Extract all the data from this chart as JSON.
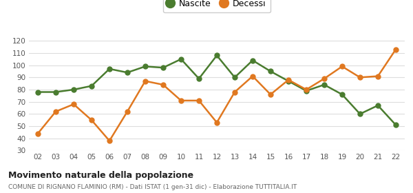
{
  "years": [
    "02",
    "03",
    "04",
    "05",
    "06",
    "07",
    "08",
    "09",
    "10",
    "11",
    "12",
    "13",
    "14",
    "15",
    "16",
    "17",
    "18",
    "19",
    "20",
    "21",
    "22"
  ],
  "nascite": [
    78,
    78,
    80,
    83,
    97,
    94,
    99,
    98,
    105,
    89,
    108,
    90,
    104,
    95,
    87,
    79,
    84,
    76,
    60,
    67,
    51
  ],
  "decessi": [
    44,
    62,
    68,
    55,
    38,
    62,
    87,
    84,
    71,
    71,
    53,
    78,
    91,
    76,
    88,
    80,
    89,
    99,
    90,
    91,
    113
  ],
  "nascite_color": "#4a7c2f",
  "decessi_color": "#e07820",
  "background_color": "#ffffff",
  "grid_color": "#dddddd",
  "title": "Movimento naturale della popolazione",
  "subtitle": "COMUNE DI RIGNANO FLAMINIO (RM) - Dati ISTAT (1 gen-31 dic) - Elaborazione TUTTITALIA.IT",
  "legend_labels": [
    "Nascite",
    "Decessi"
  ],
  "ylim": [
    30,
    125
  ],
  "yticks": [
    30,
    40,
    50,
    60,
    70,
    80,
    90,
    100,
    110,
    120
  ],
  "marker_size": 5,
  "line_width": 1.8
}
